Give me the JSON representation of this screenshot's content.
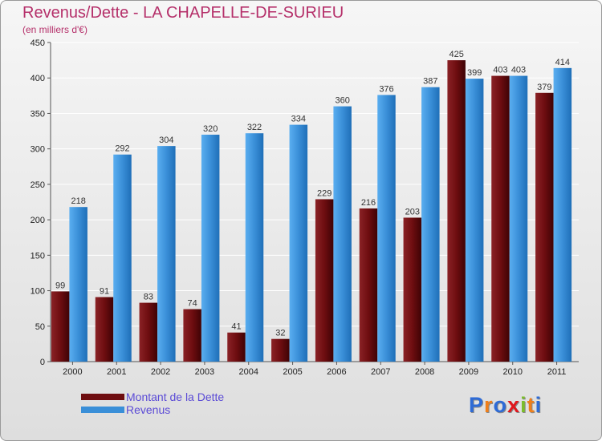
{
  "header": {
    "title": "Revenus/Dette - LA CHAPELLE-DE-SURIEU",
    "subtitle": "(en milliers d'€)"
  },
  "legend": {
    "items": [
      {
        "label": "Montant de la Dette",
        "color": "#6e0d10"
      },
      {
        "label": "Revenus",
        "color": "#3a8fd8"
      }
    ]
  },
  "logo": {
    "text": "Proxiti",
    "colors": [
      "#2e6bd6",
      "#f07f1a",
      "#2e6bd6",
      "#e0181d",
      "#7bbd2a",
      "#f07f1a",
      "#2e6bd6"
    ]
  },
  "chart_data": {
    "type": "bar",
    "categories": [
      "2000",
      "2001",
      "2002",
      "2003",
      "2004",
      "2005",
      "2006",
      "2007",
      "2008",
      "2009",
      "2010",
      "2011"
    ],
    "series": [
      {
        "name": "Montant de la Dette",
        "values": [
          99,
          91,
          83,
          74,
          41,
          32,
          229,
          216,
          203,
          425,
          403,
          379
        ],
        "color": "#6e0d10"
      },
      {
        "name": "Revenus",
        "values": [
          218,
          292,
          304,
          320,
          322,
          334,
          360,
          376,
          387,
          399,
          403,
          414
        ],
        "color": "#3a8fd8"
      }
    ],
    "ylim": [
      0,
      450
    ],
    "yticks": [
      0,
      50,
      100,
      150,
      200,
      250,
      300,
      350,
      400,
      450
    ],
    "grid": true,
    "legend_position": "bottom-left"
  }
}
